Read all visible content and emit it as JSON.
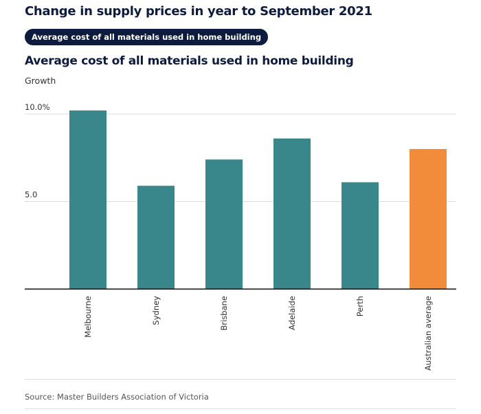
{
  "header": {
    "title": "Change in supply prices in year to September 2021",
    "toggle_label": "Average cost of all materials used in home building"
  },
  "chart_data": {
    "type": "bar",
    "title": "Average cost of all materials used in home building",
    "ylabel": "Growth",
    "xlabel": "",
    "categories": [
      "Melbourne",
      "Sydney",
      "Brisbane",
      "Adelaide",
      "Perth",
      "Australian average"
    ],
    "values": [
      10.2,
      5.9,
      7.4,
      8.6,
      6.1,
      8.0
    ],
    "colors": [
      "#3a878b",
      "#3a878b",
      "#3a878b",
      "#3a878b",
      "#3a878b",
      "#f28b3a"
    ],
    "ylim": [
      0,
      10.5
    ],
    "yticks": [
      {
        "value": 10,
        "label": "10.0%"
      },
      {
        "value": 5,
        "label": "5.0"
      }
    ],
    "grid": true,
    "legend": "none"
  },
  "footer": {
    "source": "Source: Master Builders Association of Victoria"
  }
}
